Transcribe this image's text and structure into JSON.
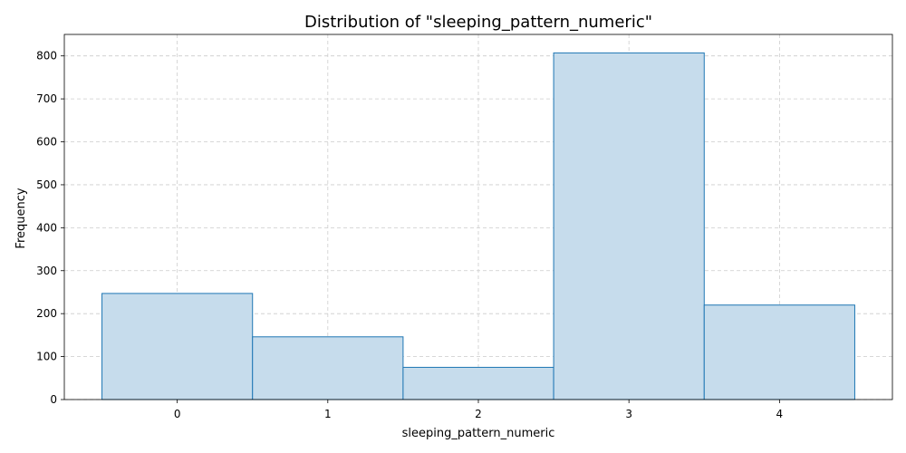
{
  "chart_data": {
    "type": "bar",
    "title": "Distribution of \"sleeping_pattern_numeric\"",
    "xlabel": "sleeping_pattern_numeric",
    "ylabel": "Frequency",
    "categories": [
      "0",
      "1",
      "2",
      "3",
      "4"
    ],
    "values": [
      247,
      146,
      75,
      807,
      220
    ],
    "x_ticks": [
      "0",
      "1",
      "2",
      "3",
      "4"
    ],
    "y_ticks": [
      "0",
      "100",
      "200",
      "300",
      "400",
      "500",
      "600",
      "700",
      "800"
    ],
    "ylim": [
      0,
      850
    ],
    "xlim": [
      -0.75,
      4.75
    ],
    "grid": true,
    "colors": {
      "bar_fill": "#c6dcec",
      "bar_edge": "#1f77b4",
      "grid": "#cccccc",
      "axis": "#000000"
    }
  }
}
